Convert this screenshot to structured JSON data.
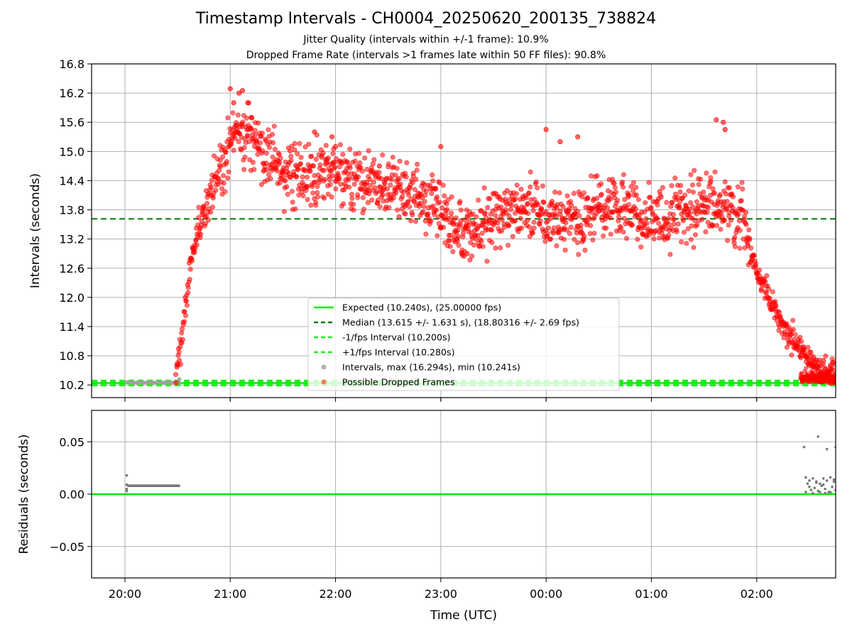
{
  "figure": {
    "title": "Timestamp Intervals - CH0004_20250620_200135_738824",
    "subtitle_1": "Jitter Quality (intervals within +/-1 frame): 10.9%",
    "subtitle_2": "Dropped Frame Rate (intervals >1 frames late within 50 FF files): 90.8%"
  },
  "colors": {
    "expected": "#00ee00",
    "median": "#008000",
    "fps_band": "#22ee22",
    "intervals": "#a0a0a0",
    "dropped": "#ff0000",
    "residuals": "#777777",
    "grid": "#b0b0b0"
  },
  "chart_data": [
    {
      "type": "scatter",
      "panel": "top",
      "title": "",
      "xlabel": "",
      "ylabel": "Intervals (seconds)",
      "x_type": "time",
      "xlim": [
        "19:41",
        "02:45"
      ],
      "x_ticks": [
        "20:00",
        "21:00",
        "22:00",
        "23:00",
        "00:00",
        "01:00",
        "02:00"
      ],
      "ylim": [
        9.94,
        16.8
      ],
      "y_ticks": [
        "10.2",
        "10.8",
        "11.4",
        "12.0",
        "12.6",
        "13.2",
        "13.8",
        "14.4",
        "15.0",
        "15.6",
        "16.2",
        "16.8"
      ],
      "grid": true,
      "legend_position": "lower-center",
      "legend": [
        "Expected (10.240s), (25.00000 fps)",
        "Median (13.615 +/- 1.631 s), (18.80316 +/- 2.69 fps)",
        "-1/fps Interval (10.200s)",
        "+1/fps Interval (10.280s)",
        "Intervals, max (16.294s), min (10.241s)",
        "Possible Dropped Frames"
      ],
      "reference_lines": [
        {
          "name": "Expected (10.240s), (25.00000 fps)",
          "y": 10.24,
          "style": "solid"
        },
        {
          "name": "Median (13.615 +/- 1.631 s), (18.80316 +/- 2.69 fps)",
          "y": 13.615,
          "style": "dashed"
        },
        {
          "name": "-1/fps Interval (10.200s)",
          "y": 10.2,
          "style": "dashed"
        },
        {
          "name": "+1/fps Interval (10.280s)",
          "y": 10.28,
          "style": "dashed"
        }
      ],
      "series": [
        {
          "name": "Intervals, max (16.294s), min (10.241s)",
          "x": [
            "20:01",
            "20:04",
            "20:07",
            "20:10",
            "20:13",
            "20:16",
            "20:19",
            "20:22",
            "20:25",
            "20:28",
            "20:31"
          ],
          "y": [
            10.26,
            10.248,
            10.248,
            10.248,
            10.248,
            10.248,
            10.248,
            10.248,
            10.248,
            10.248,
            10.32
          ]
        },
        {
          "name": "Possible Dropped Frames",
          "trend": [
            [
              "20:29",
              10.4
            ],
            [
              "20:31",
              10.8
            ],
            [
              "20:33",
              11.3
            ],
            [
              "20:36",
              12.2
            ],
            [
              "20:38",
              12.8
            ],
            [
              "20:41",
              13.3
            ],
            [
              "20:44",
              13.6
            ],
            [
              "20:48",
              14.0
            ],
            [
              "20:55",
              14.6
            ],
            [
              "21:00",
              15.2
            ],
            [
              "21:10",
              15.4
            ],
            [
              "21:20",
              14.8
            ],
            [
              "21:40",
              14.5
            ],
            [
              "22:00",
              14.6
            ],
            [
              "22:20",
              14.4
            ],
            [
              "22:40",
              14.2
            ],
            [
              "23:00",
              13.8
            ],
            [
              "23:10",
              13.3
            ],
            [
              "23:30",
              13.6
            ],
            [
              "23:50",
              13.9
            ],
            [
              "00:00",
              13.6
            ],
            [
              "00:20",
              13.7
            ],
            [
              "00:40",
              13.9
            ],
            [
              "01:00",
              13.6
            ],
            [
              "01:20",
              13.8
            ],
            [
              "01:35",
              14.0
            ],
            [
              "01:45",
              13.8
            ],
            [
              "01:53",
              13.6
            ],
            [
              "01:57",
              12.8
            ],
            [
              "02:05",
              12.2
            ],
            [
              "02:15",
              11.4
            ],
            [
              "02:25",
              10.9
            ],
            [
              "02:35",
              10.5
            ],
            [
              "02:45",
              10.4
            ]
          ],
          "spread": 0.45,
          "x": [
            "21:00",
            "21:02",
            "21:05",
            "21:07",
            "21:10",
            "21:12",
            "21:48",
            "21:58",
            "22:00",
            "22:25",
            "23:00",
            "23:12",
            "23:15",
            "00:00",
            "00:08",
            "00:18",
            "01:37",
            "01:41",
            "01:42",
            "02:32",
            "02:38",
            "02:42"
          ],
          "y": [
            16.29,
            16.0,
            16.2,
            16.25,
            16.0,
            15.7,
            15.4,
            15.3,
            15.1,
            14.7,
            15.1,
            12.9,
            12.9,
            15.45,
            15.2,
            15.3,
            15.65,
            15.6,
            15.45,
            10.6,
            10.7,
            10.6
          ]
        }
      ]
    },
    {
      "type": "scatter",
      "panel": "bottom",
      "title": "",
      "xlabel": "Time (UTC)",
      "ylabel": "Residuals (seconds)",
      "x_type": "time",
      "xlim": [
        "19:41",
        "02:45"
      ],
      "x_ticks": [
        "20:00",
        "21:00",
        "22:00",
        "23:00",
        "00:00",
        "01:00",
        "02:00"
      ],
      "ylim": [
        -0.08,
        0.08
      ],
      "y_ticks": [
        "0.05",
        "0.00",
        "−0.05"
      ],
      "grid": true,
      "series": [
        {
          "name": "",
          "x": [
            "20:01",
            "20:01",
            "20:01",
            "20:01",
            "20:02",
            "20:03",
            "20:04",
            "20:06",
            "20:08",
            "20:10",
            "20:12",
            "20:14",
            "20:16",
            "20:18",
            "20:20",
            "20:22",
            "20:24",
            "20:26",
            "20:28",
            "20:30",
            "02:27",
            "02:35",
            "02:40",
            "02:45",
            "02:28",
            "02:30",
            "02:32",
            "02:34",
            "02:36",
            "02:38",
            "02:40",
            "02:42",
            "02:44",
            "02:28",
            "02:31",
            "02:33",
            "02:35",
            "02:37",
            "02:39",
            "02:41",
            "02:43",
            "02:45",
            "02:29",
            "02:32",
            "02:36",
            "02:39",
            "02:42",
            "02:30",
            "02:34",
            "02:38",
            "02:44"
          ],
          "y": [
            0.018,
            0.009,
            0.005,
            0.003,
            0.008,
            0.008,
            0.008,
            0.008,
            0.008,
            0.008,
            0.008,
            0.008,
            0.008,
            0.008,
            0.008,
            0.008,
            0.008,
            0.008,
            0.008,
            0.008,
            0.045,
            0.055,
            0.043,
            0.045,
            0.016,
            0.013,
            0.015,
            0.012,
            0.01,
            0.015,
            0.013,
            0.016,
            0.014,
            0.002,
            0.004,
            0.006,
            0.003,
            0.008,
            0.005,
            0.002,
            0.007,
            0.004,
            0.01,
            0.001,
            0.002,
            0.001,
            0.002,
            0.007,
            0.011,
            0.009,
            0.012
          ]
        }
      ],
      "reference_lines": [
        {
          "name": "Expected",
          "y": 0.0,
          "style": "solid"
        }
      ]
    }
  ]
}
